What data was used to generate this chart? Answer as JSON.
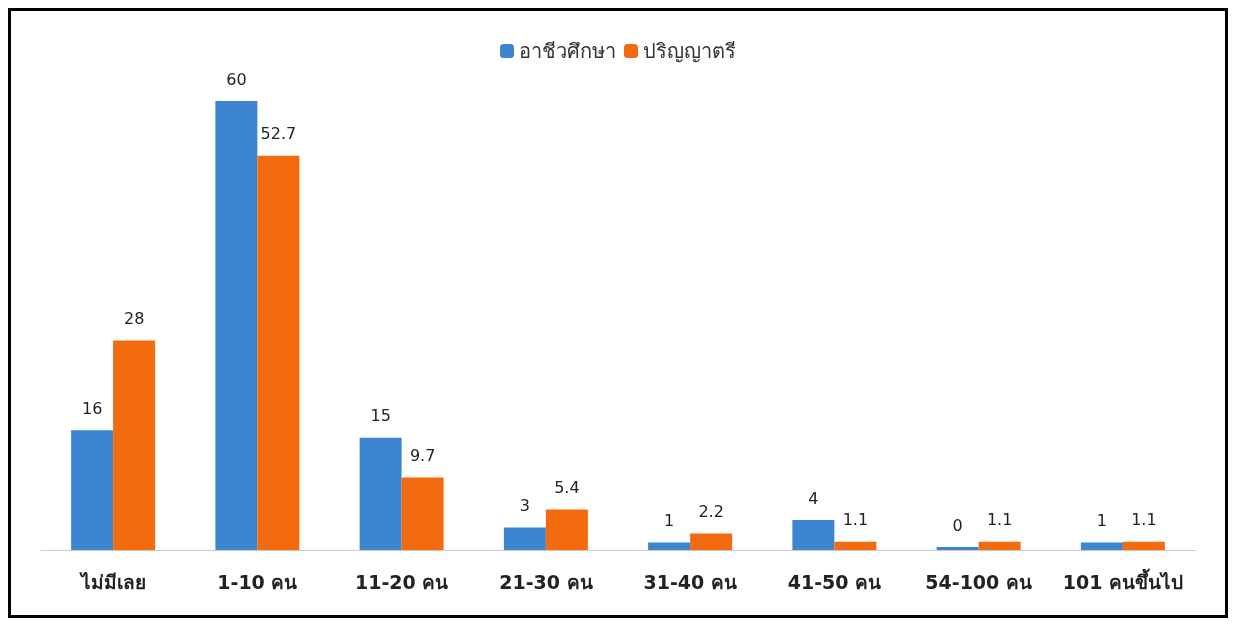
{
  "chart_data": {
    "type": "bar",
    "categories": [
      "ไม่มีเลย",
      "1-10 คน",
      "11-20 คน",
      "21-30 คน",
      "31-40 คน",
      "41-50 คน",
      "54-100 คน",
      "101 คนขึ้นไป"
    ],
    "series": [
      {
        "name": "อาชีวศึกษา",
        "color": "#3d85d1",
        "values": [
          16,
          60,
          15,
          3,
          1,
          4,
          0,
          1
        ]
      },
      {
        "name": "ปริญญาตรี",
        "color": "#f26b0f",
        "values": [
          28,
          52.7,
          9.7,
          5.4,
          2.2,
          1.1,
          1.1,
          1.1
        ]
      }
    ],
    "data_labels": true,
    "legend": "top",
    "grid": false
  }
}
